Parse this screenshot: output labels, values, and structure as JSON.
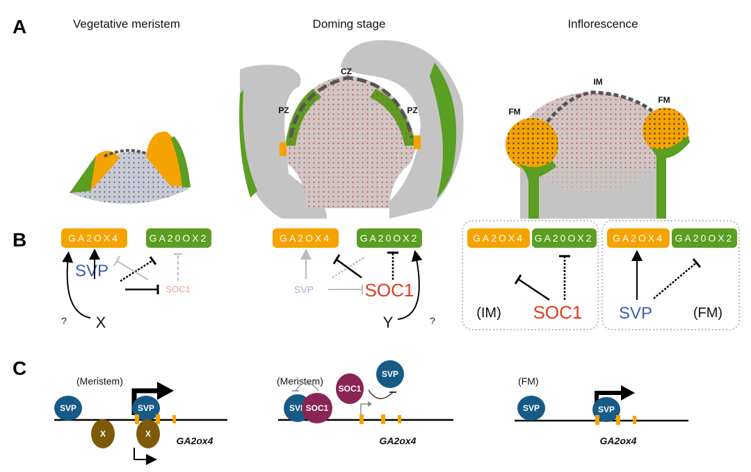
{
  "panel_labels": {
    "a": "A",
    "b": "B",
    "c": "C"
  },
  "panel_a": {
    "titles": [
      "Vegetative meristem",
      "Doming stage",
      "Inflorescence"
    ],
    "zones": {
      "cz": "CZ",
      "pz": "PZ",
      "im": "IM",
      "fm": "FM"
    }
  },
  "panel_b": {
    "ga2ox4": "GA2OX4",
    "ga20ox2": "GA20OX2",
    "svp": "SVP",
    "soc1": "SOC1",
    "x": "X",
    "y": "Y",
    "question": "?",
    "im": "(IM)",
    "fm": "(FM)"
  },
  "panel_c": {
    "meristem": "(Meristem)",
    "fm": "(FM)",
    "gene": "GA2ox4",
    "svp": "SVP",
    "soc1": "SOC1",
    "x": "X"
  },
  "colors": {
    "orange": "#f5a300",
    "green": "#5a9e22",
    "gray": "#c4c4c4",
    "svp_blue": "#3a5bb0",
    "soc1_red": "#e03a1e",
    "svp_protein": "#185a86",
    "soc1_protein": "#8a2454",
    "x_protein": "#7d5a0a"
  }
}
